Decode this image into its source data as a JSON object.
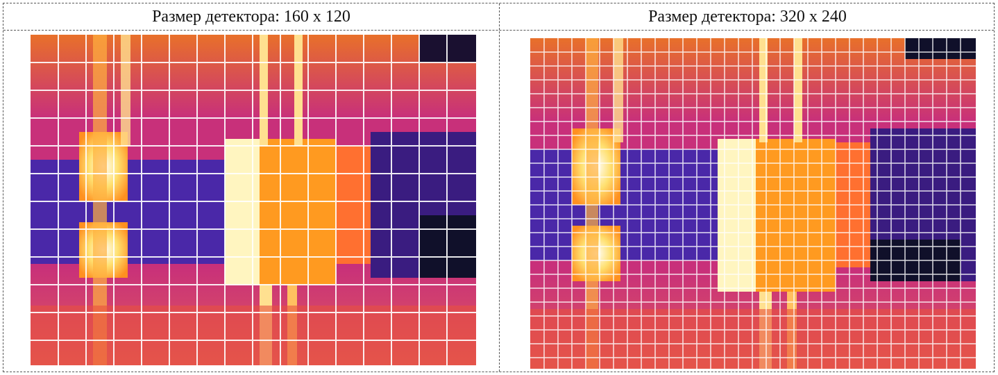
{
  "panels": [
    {
      "caption": "Размер детектора: 160 x 120",
      "grid_cols": 16,
      "grid_rows": 12
    },
    {
      "caption": "Размер детектора: 320 x 240",
      "grid_cols": 32,
      "grid_rows": 24
    }
  ],
  "colors": {
    "hot": "#ffffe0",
    "warm": "#ffb000",
    "mid": "#e05a2a",
    "background": "#c8307a",
    "cool": "#5a20a0",
    "cold": "#10102a",
    "grid": "#ffffff"
  }
}
